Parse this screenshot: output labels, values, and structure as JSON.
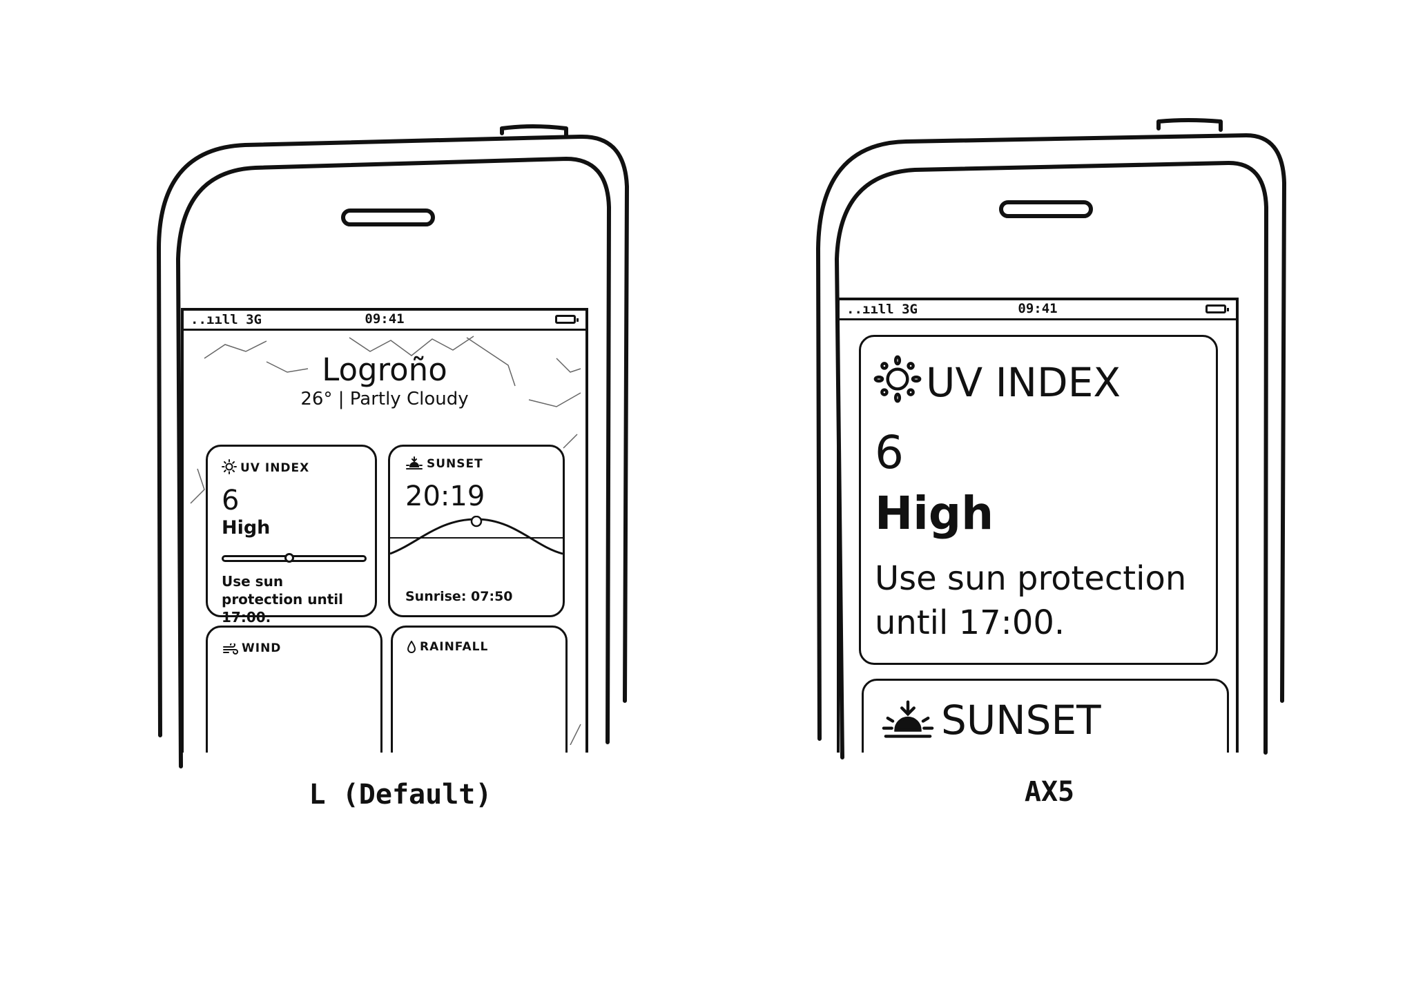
{
  "variants": [
    {
      "caption": "L (Default)",
      "status": {
        "signal": "..ııll 3G",
        "time": "09:41"
      },
      "header": {
        "city": "Logroño",
        "conditions": "26° | Partly Cloudy"
      },
      "uv": {
        "title": "UV INDEX",
        "value": "6",
        "level": "High",
        "advice": "Use sun protection until 17:00.",
        "level_fraction": 0.55,
        "icon": "sun-icon"
      },
      "sunset": {
        "title": "SUNSET",
        "time": "20:19",
        "sunrise": "Sunrise: 07:50",
        "icon": "sunset-icon"
      },
      "wind": {
        "title": "WIND",
        "icon": "wind-icon"
      },
      "rainfall": {
        "title": "RAINFALL",
        "icon": "raindrop-icon"
      }
    },
    {
      "caption": "AX5",
      "status": {
        "signal": "..ııll 3G",
        "time": "09:41"
      },
      "uv": {
        "title": "UV INDEX",
        "value": "6",
        "level": "High",
        "advice": "Use sun protection until 17:00.",
        "icon": "sun-icon"
      },
      "sunset": {
        "title": "SUNSET",
        "icon": "sunset-icon"
      }
    }
  ]
}
